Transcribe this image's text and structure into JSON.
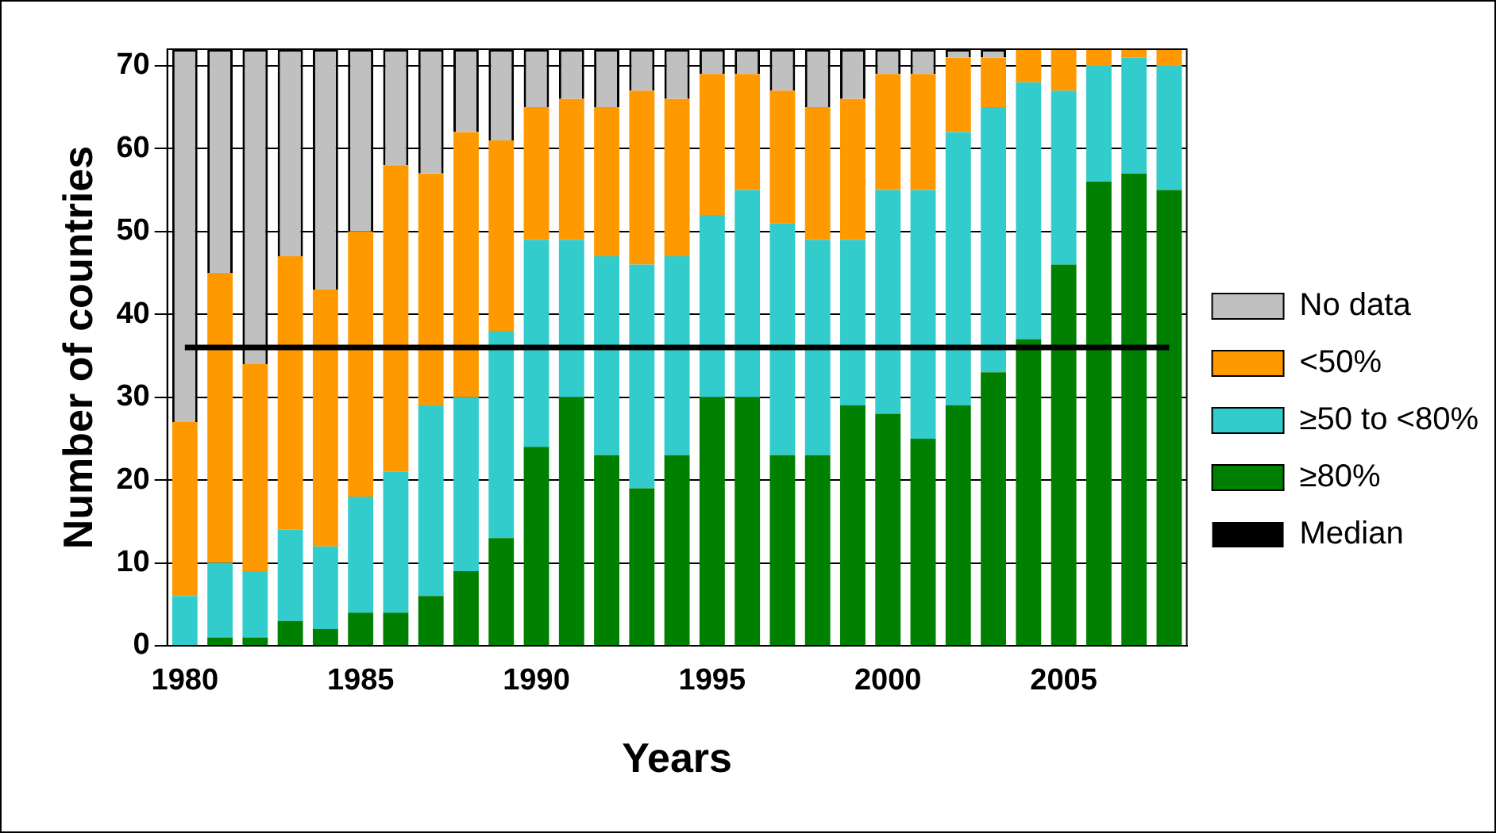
{
  "chart_data": {
    "type": "bar",
    "stacked": true,
    "xlabel": "Years",
    "ylabel": "Number of countries",
    "categories": [
      "1980",
      null,
      null,
      null,
      null,
      "1985",
      null,
      null,
      null,
      null,
      "1990",
      null,
      null,
      null,
      null,
      "1995",
      null,
      null,
      null,
      null,
      "2000",
      null,
      null,
      null,
      null,
      "2005",
      null,
      null,
      null
    ],
    "series": [
      {
        "name": "≥80%",
        "color": "#008000",
        "values": [
          0,
          1,
          1,
          3,
          2,
          4,
          4,
          6,
          9,
          13,
          24,
          30,
          23,
          19,
          23,
          30,
          30,
          23,
          23,
          29,
          28,
          25,
          29,
          33,
          37,
          46,
          56,
          57,
          55
        ]
      },
      {
        "name": "≥50 to <80%",
        "color": "#33cccc",
        "values": [
          6,
          9,
          8,
          11,
          10,
          14,
          17,
          23,
          21,
          25,
          25,
          19,
          24,
          27,
          24,
          22,
          25,
          28,
          26,
          20,
          27,
          30,
          33,
          32,
          31,
          21,
          14,
          14,
          15
        ]
      },
      {
        "name": "<50%",
        "color": "#ff9900",
        "values": [
          21,
          35,
          25,
          33,
          31,
          32,
          37,
          28,
          32,
          23,
          16,
          17,
          18,
          21,
          19,
          17,
          14,
          16,
          16,
          17,
          14,
          14,
          9,
          6,
          4,
          5,
          2,
          1,
          2
        ]
      },
      {
        "name": "No data",
        "color": "#c0c0c0",
        "values": [
          45,
          27,
          38,
          25,
          29,
          22,
          14,
          15,
          10,
          11,
          7,
          6,
          7,
          5,
          6,
          3,
          3,
          5,
          7,
          6,
          3,
          3,
          1,
          1,
          0,
          0,
          0,
          0,
          0
        ]
      },
      {
        "name": "Median",
        "type": "line",
        "color": "#000000",
        "values": [
          36,
          36,
          36,
          36,
          36,
          36,
          36,
          36,
          36,
          36,
          36,
          36,
          36,
          36,
          36,
          36,
          36,
          36,
          36,
          36,
          36,
          36,
          36,
          36,
          36,
          36,
          36,
          36,
          36
        ]
      }
    ],
    "ylim": [
      0,
      72
    ],
    "yticks": [
      0,
      10,
      20,
      30,
      40,
      50,
      60,
      70
    ],
    "grid": "y",
    "legend": "right",
    "marker": "none"
  }
}
